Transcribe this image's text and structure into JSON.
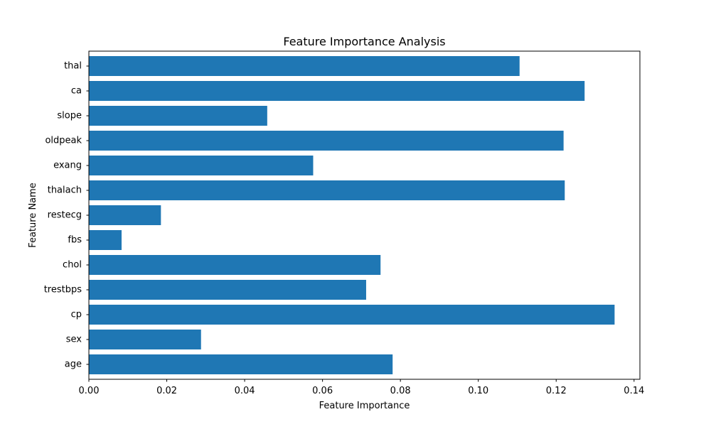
{
  "chart_data": {
    "type": "bar",
    "orientation": "horizontal",
    "title": "Feature Importance Analysis",
    "xlabel": "Feature Importance",
    "ylabel": "Feature Name",
    "categories": [
      "age",
      "sex",
      "cp",
      "trestbps",
      "chol",
      "fbs",
      "restecg",
      "thalach",
      "exang",
      "oldpeak",
      "slope",
      "ca",
      "thal"
    ],
    "values": [
      0.078,
      0.0288,
      0.135,
      0.0712,
      0.0749,
      0.0084,
      0.0185,
      0.1222,
      0.0576,
      0.1219,
      0.0458,
      0.1273,
      0.1106
    ],
    "xlim": [
      0,
      0.1415
    ],
    "xticks": [
      0.0,
      0.02,
      0.04,
      0.06,
      0.08,
      0.1,
      0.12,
      0.14
    ],
    "xtick_labels": [
      "0.00",
      "0.02",
      "0.04",
      "0.06",
      "0.08",
      "0.10",
      "0.12",
      "0.14"
    ],
    "bar_color": "#1f77b4",
    "grid": false,
    "legend": false
  }
}
